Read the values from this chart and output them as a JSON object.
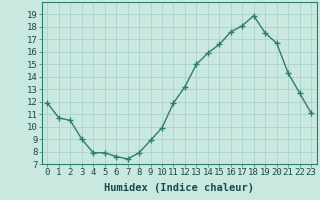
{
  "x": [
    0,
    1,
    2,
    3,
    4,
    5,
    6,
    7,
    8,
    9,
    10,
    11,
    12,
    13,
    14,
    15,
    16,
    17,
    18,
    19,
    20,
    21,
    22,
    23
  ],
  "y": [
    11.9,
    10.7,
    10.5,
    9.0,
    7.9,
    7.9,
    7.6,
    7.4,
    7.9,
    8.9,
    9.9,
    11.9,
    13.2,
    15.0,
    15.9,
    16.6,
    17.6,
    18.1,
    18.9,
    17.5,
    16.7,
    14.3,
    12.7,
    11.1
  ],
  "line_color": "#2e7d6e",
  "marker": "+",
  "marker_size": 4,
  "marker_linewidth": 1.0,
  "background_color": "#c8e8e0",
  "grid_color": "#a8ccc8",
  "xlabel": "Humidex (Indice chaleur)",
  "xlim": [
    -0.5,
    23.5
  ],
  "ylim": [
    7,
    20
  ],
  "xticks": [
    0,
    1,
    2,
    3,
    4,
    5,
    6,
    7,
    8,
    9,
    10,
    11,
    12,
    13,
    14,
    15,
    16,
    17,
    18,
    19,
    20,
    21,
    22,
    23
  ],
  "yticks": [
    7,
    8,
    9,
    10,
    11,
    12,
    13,
    14,
    15,
    16,
    17,
    18,
    19
  ],
  "xlabel_fontsize": 7.5,
  "tick_fontsize": 6.5,
  "line_width": 1.0,
  "text_color": "#1a4a4a",
  "spine_color": "#2e7d6e"
}
